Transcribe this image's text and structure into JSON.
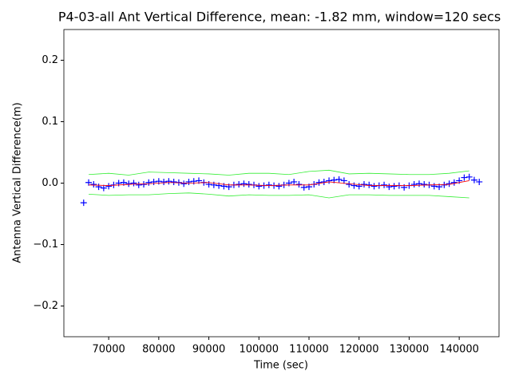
{
  "chart_data": {
    "type": "scatter-line",
    "title": "P4-03-all Ant Vertical Difference, mean: -1.82 mm, window=120 secs",
    "xlabel": "Time (sec)",
    "ylabel": "Antenna Vertical Difference(m)",
    "xlim": [
      61050,
      147950
    ],
    "ylim": [
      -0.25,
      0.25
    ],
    "xticks": [
      70000,
      80000,
      90000,
      100000,
      110000,
      120000,
      130000,
      140000
    ],
    "yticks": [
      {
        "value": -0.2,
        "label": "−0.2"
      },
      {
        "value": -0.1,
        "label": "−0.1"
      },
      {
        "value": 0,
        "label": "0.0"
      },
      {
        "value": 0.1,
        "label": "0.1"
      },
      {
        "value": 0.2,
        "label": "0.2"
      }
    ],
    "series": [
      {
        "color": "#0000ff",
        "marker": "+",
        "x": [
          65000,
          66000,
          67000,
          68000,
          69000,
          70000,
          71000,
          72000,
          73000,
          74000,
          75000,
          76000,
          77000,
          78000,
          79000,
          80000,
          81000,
          82000,
          83000,
          84000,
          85000,
          86000,
          87000,
          88000,
          89000,
          90000,
          91000,
          92000,
          93000,
          94000,
          95000,
          96000,
          97000,
          98000,
          99000,
          100000,
          101000,
          102000,
          103000,
          104000,
          105000,
          106000,
          107000,
          108000,
          109000,
          110000,
          111000,
          112000,
          113000,
          114000,
          115000,
          116000,
          117000,
          118000,
          119000,
          120000,
          121000,
          122000,
          123000,
          124000,
          125000,
          126000,
          127000,
          128000,
          129000,
          130000,
          131000,
          132000,
          133000,
          134000,
          135000,
          136000,
          137000,
          138000,
          139000,
          140000,
          141000,
          142000,
          143000,
          144000
        ],
        "values": [
          -0.032,
          0.001,
          -0.002,
          -0.006,
          -0.008,
          -0.005,
          -0.003,
          0.0,
          0.001,
          -0.001,
          0.0,
          -0.003,
          -0.002,
          0.001,
          0.002,
          0.003,
          0.002,
          0.003,
          0.002,
          0.001,
          -0.001,
          0.002,
          0.003,
          0.004,
          0.001,
          -0.002,
          -0.003,
          -0.004,
          -0.005,
          -0.006,
          -0.003,
          -0.002,
          -0.001,
          -0.002,
          -0.003,
          -0.005,
          -0.004,
          -0.003,
          -0.004,
          -0.005,
          -0.003,
          0.0,
          0.002,
          -0.002,
          -0.007,
          -0.006,
          -0.002,
          0.001,
          0.002,
          0.004,
          0.005,
          0.006,
          0.004,
          -0.002,
          -0.004,
          -0.005,
          -0.002,
          -0.003,
          -0.005,
          -0.004,
          -0.003,
          -0.006,
          -0.005,
          -0.004,
          -0.007,
          -0.004,
          -0.002,
          -0.001,
          -0.002,
          -0.003,
          -0.005,
          -0.006,
          -0.003,
          -0.001,
          0.001,
          0.004,
          0.009,
          0.01,
          0.005,
          0.002
        ]
      },
      {
        "color": "#ff0000",
        "marker": "line",
        "x": [
          66000,
          70000,
          74000,
          78000,
          82000,
          86000,
          90000,
          94000,
          98000,
          102000,
          106000,
          110000,
          114000,
          118000,
          122000,
          126000,
          130000,
          134000,
          138000,
          142000
        ],
        "values": [
          -0.003,
          -0.004,
          -0.002,
          -0.001,
          0.001,
          0.0,
          0.001,
          -0.003,
          -0.003,
          -0.004,
          -0.003,
          -0.003,
          0.002,
          -0.001,
          -0.004,
          -0.004,
          -0.004,
          -0.003,
          -0.002,
          0.004
        ]
      },
      {
        "color": "#33ee33",
        "marker": "line",
        "x": [
          66000,
          70000,
          74000,
          78000,
          82000,
          86000,
          90000,
          94000,
          98000,
          102000,
          106000,
          110000,
          114000,
          118000,
          122000,
          126000,
          130000,
          134000,
          138000,
          142000
        ],
        "values": [
          0.014,
          0.016,
          0.013,
          0.018,
          0.017,
          0.016,
          0.015,
          0.013,
          0.016,
          0.016,
          0.014,
          0.019,
          0.021,
          0.015,
          0.016,
          0.015,
          0.014,
          0.014,
          0.016,
          0.02
        ]
      },
      {
        "color": "#33ee33",
        "marker": "line",
        "x": [
          66000,
          70000,
          74000,
          78000,
          82000,
          86000,
          90000,
          94000,
          98000,
          102000,
          106000,
          110000,
          114000,
          118000,
          122000,
          126000,
          130000,
          134000,
          138000,
          142000
        ],
        "values": [
          -0.018,
          -0.02,
          -0.019,
          -0.019,
          -0.017,
          -0.016,
          -0.018,
          -0.021,
          -0.019,
          -0.02,
          -0.02,
          -0.019,
          -0.024,
          -0.019,
          -0.019,
          -0.02,
          -0.02,
          -0.02,
          -0.022,
          -0.024
        ]
      }
    ]
  }
}
